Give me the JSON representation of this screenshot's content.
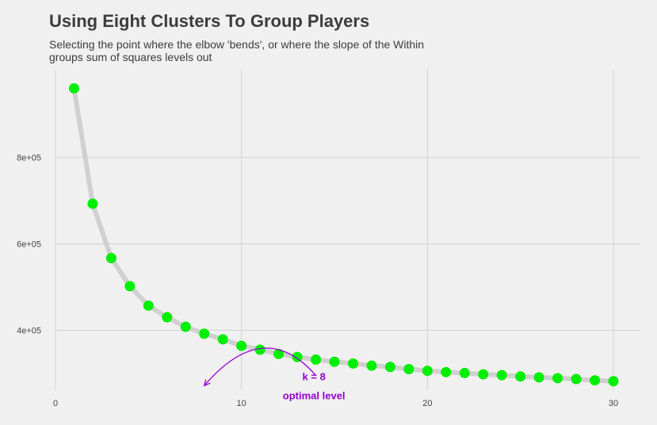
{
  "chart_data": {
    "type": "line",
    "title": "Using Eight Clusters To Group Players",
    "subtitle": "Selecting the point where the elbow 'bends', or where the slope of the Within groups sum of squares levels out",
    "xlabel": "",
    "ylabel": "",
    "xlim": [
      0,
      31.5
    ],
    "ylim": [
      250000,
      985000
    ],
    "x_ticks": [
      0,
      10,
      20,
      30
    ],
    "x_tick_labels": [
      "0",
      "10",
      "20",
      "30"
    ],
    "y_ticks": [
      400000,
      600000,
      800000
    ],
    "y_tick_labels": [
      "4e+05",
      "6e+05",
      "8e+05"
    ],
    "grid": true,
    "series": [
      {
        "x": [
          1,
          2,
          3,
          4,
          5,
          6,
          7,
          8,
          9,
          10,
          11,
          12,
          13,
          14,
          15,
          16,
          17,
          18,
          19,
          20,
          21,
          22,
          23,
          24,
          25,
          26,
          27,
          28,
          29,
          30
        ],
        "values": [
          960000,
          693000,
          567000,
          502000,
          457000,
          430000,
          408000,
          392000,
          379000,
          364000,
          355000,
          345000,
          338000,
          332000,
          327000,
          323000,
          318000,
          315000,
          310000,
          306000,
          303000,
          301000,
          298000,
          296000,
          293000,
          291000,
          289000,
          287000,
          284000,
          282000
        ]
      }
    ],
    "annotation": {
      "text_line1": "k = 8",
      "text_line2": "optimal level",
      "arrow_from": [
        14,
        310000
      ],
      "arrow_to": [
        8,
        290000
      ]
    },
    "colors": {
      "line": "#d0d0d0",
      "points": "#00ee00",
      "annotation": "#9400d3",
      "grid": "#d2d2d2",
      "background": "#f0f0f0"
    }
  }
}
